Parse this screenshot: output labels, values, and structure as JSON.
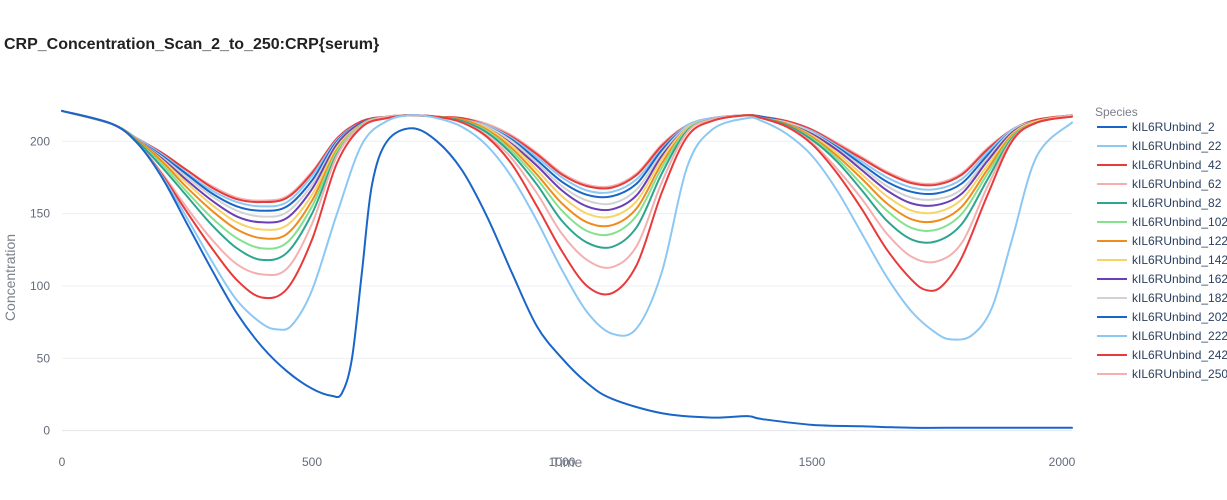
{
  "chart_data": {
    "type": "line",
    "title": "CRP_Concentration_Scan_2_to_250:CRP{serum}",
    "xlabel": "Time",
    "ylabel": "Concentration",
    "xlim": [
      0,
      2020
    ],
    "ylim": [
      -12,
      232
    ],
    "xticks": [
      0,
      500,
      1000,
      1500,
      2000
    ],
    "yticks": [
      0,
      50,
      100,
      150,
      200
    ],
    "grid": "horizontal",
    "legend_title": "Species",
    "legend_position": "right",
    "series": [
      {
        "name": "kIL6RUnbind_2",
        "color": "#1a66c8",
        "x": [
          0,
          100,
          150,
          200,
          250,
          300,
          350,
          400,
          450,
          500,
          540,
          560,
          580,
          600,
          620,
          650,
          700,
          750,
          800,
          850,
          900,
          950,
          1000,
          1050,
          1100,
          1200,
          1300,
          1370,
          1400,
          1500,
          1600,
          1700,
          1800,
          1900,
          2000,
          2020
        ],
        "y": [
          221,
          212,
          199,
          175,
          143,
          111,
          81,
          58,
          41,
          29,
          24,
          26,
          50,
          110,
          170,
          200,
          209,
          200,
          180,
          148,
          109,
          72,
          50,
          33,
          22,
          12,
          9,
          10,
          8,
          4,
          3,
          2,
          2,
          2,
          2,
          2
        ]
      },
      {
        "name": "kIL6RUnbind_22",
        "color": "#8cc8f4",
        "x": [
          0,
          100,
          150,
          200,
          250,
          300,
          350,
          400,
          430,
          460,
          500,
          550,
          600,
          650,
          700,
          750,
          800,
          850,
          900,
          950,
          1000,
          1050,
          1100,
          1150,
          1200,
          1250,
          1300,
          1370,
          1400,
          1450,
          1500,
          1550,
          1600,
          1650,
          1700,
          1750,
          1780,
          1820,
          1860,
          1900,
          1950,
          2020
        ],
        "y": [
          221,
          212,
          199,
          176,
          147,
          117,
          90,
          74,
          70,
          73,
          97,
          150,
          198,
          214,
          218,
          216,
          210,
          197,
          175,
          145,
          111,
          82,
          67,
          71,
          110,
          182,
          208,
          216,
          214,
          205,
          190,
          166,
          136,
          106,
          82,
          67,
          63,
          66,
          85,
          132,
          190,
          213
        ]
      },
      {
        "name": "kIL6RUnbind_42",
        "color": "#e83a3a",
        "x": [
          0,
          100,
          150,
          200,
          250,
          300,
          350,
          400,
          450,
          500,
          550,
          600,
          650,
          700,
          750,
          800,
          850,
          900,
          950,
          1000,
          1050,
          1100,
          1150,
          1200,
          1250,
          1300,
          1370,
          1400,
          1450,
          1500,
          1550,
          1600,
          1650,
          1700,
          1730,
          1760,
          1800,
          1850,
          1900,
          1950,
          2020
        ],
        "y": [
          221,
          212,
          199,
          177,
          151,
          126,
          104,
          92,
          98,
          132,
          185,
          210,
          216,
          218,
          217,
          213,
          203,
          184,
          155,
          124,
          100,
          95,
          115,
          165,
          203,
          214,
          218,
          216,
          210,
          198,
          178,
          153,
          125,
          104,
          97,
          100,
          120,
          162,
          200,
          213,
          217
        ]
      },
      {
        "name": "kIL6RUnbind_62",
        "color": "#f4b0b0",
        "x": [
          0,
          100,
          150,
          200,
          250,
          300,
          350,
          400,
          450,
          500,
          550,
          600,
          650,
          700,
          750,
          800,
          850,
          900,
          950,
          1000,
          1050,
          1100,
          1150,
          1200,
          1250,
          1300,
          1370,
          1400,
          1450,
          1500,
          1550,
          1600,
          1650,
          1700,
          1750,
          1800,
          1850,
          1900,
          1950,
          2020
        ],
        "y": [
          221,
          212,
          199,
          178,
          154,
          132,
          115,
          108,
          112,
          143,
          190,
          211,
          217,
          218,
          217,
          213,
          204,
          188,
          164,
          136,
          118,
          113,
          128,
          172,
          206,
          215,
          218,
          216,
          210,
          199,
          181,
          160,
          136,
          120,
          117,
          130,
          168,
          201,
          213,
          218
        ]
      },
      {
        "name": "kIL6RUnbind_82",
        "color": "#2ea58f",
        "x": [
          0,
          100,
          150,
          200,
          250,
          300,
          350,
          400,
          450,
          500,
          550,
          600,
          650,
          700,
          750,
          800,
          850,
          900,
          950,
          1000,
          1050,
          1100,
          1150,
          1200,
          1250,
          1300,
          1370,
          1400,
          1450,
          1500,
          1550,
          1600,
          1650,
          1700,
          1750,
          1800,
          1850,
          1900,
          1950,
          2020
        ],
        "y": [
          221,
          212,
          200,
          182,
          162,
          142,
          126,
          118,
          123,
          150,
          191,
          211,
          217,
          218,
          217,
          214,
          206,
          191,
          170,
          145,
          130,
          127,
          141,
          178,
          207,
          215,
          218,
          216,
          211,
          201,
          186,
          166,
          145,
          132,
          131,
          143,
          173,
          202,
          213,
          218
        ]
      },
      {
        "name": "kIL6RUnbind_102",
        "color": "#84e28f",
        "x": [
          0,
          100,
          150,
          200,
          250,
          300,
          350,
          400,
          450,
          500,
          550,
          600,
          650,
          700,
          750,
          800,
          850,
          900,
          950,
          1000,
          1050,
          1100,
          1150,
          1200,
          1250,
          1300,
          1370,
          1400,
          1450,
          1500,
          1550,
          1600,
          1650,
          1700,
          1750,
          1800,
          1850,
          1900,
          1950,
          2020
        ],
        "y": [
          221,
          212,
          200,
          184,
          165,
          147,
          133,
          126,
          130,
          155,
          193,
          212,
          217,
          218,
          217,
          214,
          207,
          193,
          174,
          152,
          138,
          136,
          149,
          182,
          208,
          215,
          218,
          216,
          211,
          202,
          188,
          170,
          152,
          140,
          139,
          150,
          177,
          203,
          213,
          218
        ]
      },
      {
        "name": "kIL6RUnbind_122",
        "color": "#ef8c1e",
        "x": [
          0,
          100,
          150,
          200,
          250,
          300,
          350,
          400,
          450,
          500,
          550,
          600,
          650,
          700,
          750,
          800,
          850,
          900,
          950,
          1000,
          1050,
          1100,
          1150,
          1200,
          1250,
          1300,
          1370,
          1400,
          1450,
          1500,
          1550,
          1600,
          1650,
          1700,
          1750,
          1800,
          1850,
          1900,
          1950,
          2020
        ],
        "y": [
          221,
          212,
          201,
          186,
          168,
          152,
          139,
          133,
          136,
          159,
          194,
          212,
          217,
          218,
          217,
          215,
          208,
          195,
          177,
          157,
          144,
          142,
          154,
          185,
          208,
          215,
          218,
          216,
          212,
          203,
          190,
          174,
          157,
          146,
          145,
          155,
          180,
          204,
          213,
          218
        ]
      },
      {
        "name": "kIL6RUnbind_142",
        "color": "#f6d468",
        "x": [
          0,
          100,
          150,
          200,
          250,
          300,
          350,
          400,
          450,
          500,
          550,
          600,
          650,
          700,
          750,
          800,
          850,
          900,
          950,
          1000,
          1050,
          1100,
          1150,
          1200,
          1250,
          1300,
          1370,
          1400,
          1450,
          1500,
          1550,
          1600,
          1650,
          1700,
          1750,
          1800,
          1850,
          1900,
          1950,
          2020
        ],
        "y": [
          221,
          212,
          201,
          187,
          171,
          156,
          144,
          139,
          142,
          163,
          196,
          212,
          217,
          218,
          217,
          215,
          209,
          197,
          180,
          162,
          150,
          148,
          159,
          188,
          209,
          215,
          218,
          216,
          212,
          204,
          192,
          177,
          162,
          152,
          151,
          160,
          183,
          205,
          214,
          218
        ]
      },
      {
        "name": "kIL6RUnbind_162",
        "color": "#6a3fb8",
        "x": [
          0,
          100,
          150,
          200,
          250,
          300,
          350,
          400,
          450,
          500,
          550,
          600,
          650,
          700,
          750,
          800,
          850,
          900,
          950,
          1000,
          1050,
          1100,
          1150,
          1200,
          1250,
          1300,
          1370,
          1400,
          1450,
          1500,
          1550,
          1600,
          1650,
          1700,
          1750,
          1800,
          1850,
          1900,
          1950,
          2020
        ],
        "y": [
          221,
          212,
          201,
          188,
          173,
          159,
          148,
          144,
          147,
          167,
          198,
          213,
          217,
          218,
          217,
          215,
          209,
          198,
          183,
          166,
          155,
          153,
          163,
          190,
          209,
          215,
          218,
          216,
          212,
          205,
          194,
          180,
          166,
          157,
          156,
          164,
          186,
          206,
          214,
          218
        ]
      },
      {
        "name": "kIL6RUnbind_182",
        "color": "#d2d2d2",
        "x": [
          0,
          100,
          150,
          200,
          250,
          300,
          350,
          400,
          450,
          500,
          550,
          600,
          650,
          700,
          750,
          800,
          850,
          900,
          950,
          1000,
          1050,
          1100,
          1150,
          1200,
          1250,
          1300,
          1370,
          1400,
          1450,
          1500,
          1550,
          1600,
          1650,
          1700,
          1750,
          1800,
          1850,
          1900,
          1950,
          2020
        ],
        "y": [
          221,
          212,
          201,
          189,
          175,
          162,
          152,
          148,
          151,
          170,
          199,
          213,
          217,
          218,
          217,
          215,
          210,
          200,
          185,
          169,
          159,
          157,
          167,
          192,
          210,
          215,
          218,
          216,
          213,
          206,
          195,
          182,
          169,
          161,
          160,
          167,
          188,
          207,
          214,
          218
        ]
      },
      {
        "name": "kIL6RUnbind_202",
        "color": "#1a66c8",
        "x": [
          0,
          100,
          150,
          200,
          250,
          300,
          350,
          400,
          450,
          500,
          550,
          600,
          650,
          700,
          750,
          800,
          850,
          900,
          950,
          1000,
          1050,
          1100,
          1150,
          1200,
          1250,
          1300,
          1370,
          1400,
          1450,
          1500,
          1550,
          1600,
          1650,
          1700,
          1750,
          1800,
          1850,
          1900,
          1950,
          2020
        ],
        "y": [
          221,
          212,
          201,
          190,
          177,
          164,
          155,
          152,
          155,
          173,
          200,
          213,
          217,
          218,
          217,
          215,
          210,
          201,
          187,
          172,
          163,
          162,
          171,
          194,
          210,
          215,
          218,
          217,
          213,
          206,
          196,
          184,
          172,
          165,
          164,
          171,
          190,
          207,
          214,
          218
        ]
      },
      {
        "name": "kIL6RUnbind_222",
        "color": "#8cc8f4",
        "x": [
          0,
          100,
          150,
          200,
          250,
          300,
          350,
          400,
          450,
          500,
          550,
          600,
          650,
          700,
          750,
          800,
          850,
          900,
          950,
          1000,
          1050,
          1100,
          1150,
          1200,
          1250,
          1300,
          1370,
          1400,
          1450,
          1500,
          1550,
          1600,
          1650,
          1700,
          1750,
          1800,
          1850,
          1900,
          1950,
          2020
        ],
        "y": [
          221,
          212,
          202,
          191,
          178,
          166,
          158,
          155,
          158,
          176,
          201,
          213,
          217,
          218,
          217,
          215,
          211,
          202,
          189,
          175,
          166,
          165,
          174,
          195,
          211,
          216,
          218,
          217,
          213,
          207,
          197,
          186,
          175,
          168,
          167,
          174,
          192,
          208,
          214,
          218
        ]
      },
      {
        "name": "kIL6RUnbind_242",
        "color": "#e83a3a",
        "x": [
          0,
          100,
          150,
          200,
          250,
          300,
          350,
          400,
          450,
          500,
          550,
          600,
          650,
          700,
          750,
          800,
          850,
          900,
          950,
          1000,
          1050,
          1100,
          1150,
          1200,
          1250,
          1300,
          1370,
          1400,
          1450,
          1500,
          1550,
          1600,
          1650,
          1700,
          1750,
          1800,
          1850,
          1900,
          1950,
          2020
        ],
        "y": [
          221,
          212,
          202,
          192,
          180,
          168,
          160,
          158,
          161,
          178,
          202,
          214,
          217,
          218,
          217,
          216,
          211,
          203,
          191,
          177,
          169,
          168,
          177,
          197,
          211,
          216,
          218,
          217,
          214,
          208,
          198,
          188,
          178,
          171,
          170,
          177,
          194,
          208,
          215,
          218
        ]
      },
      {
        "name": "kIL6RUnbind_250",
        "color": "#f4b0b0",
        "x": [
          0,
          100,
          150,
          200,
          250,
          300,
          350,
          400,
          450,
          500,
          550,
          600,
          650,
          700,
          750,
          800,
          850,
          900,
          950,
          1000,
          1050,
          1100,
          1150,
          1200,
          1250,
          1300,
          1370,
          1400,
          1450,
          1500,
          1550,
          1600,
          1650,
          1700,
          1750,
          1800,
          1850,
          1900,
          1950,
          2020
        ],
        "y": [
          221,
          212,
          202,
          192,
          180,
          169,
          161,
          159,
          162,
          179,
          202,
          214,
          217,
          218,
          217,
          216,
          212,
          204,
          192,
          178,
          170,
          169,
          178,
          198,
          211,
          216,
          218,
          217,
          214,
          208,
          199,
          189,
          179,
          172,
          171,
          178,
          195,
          208,
          215,
          218
        ]
      }
    ]
  }
}
